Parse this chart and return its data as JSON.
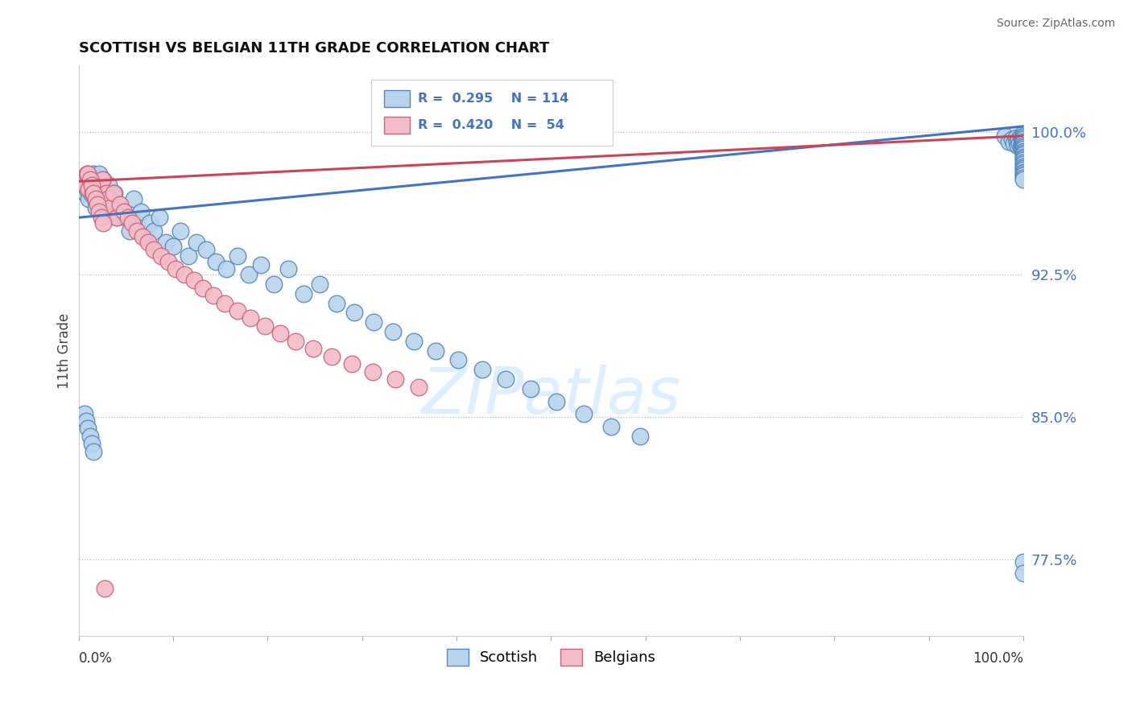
{
  "title": "SCOTTISH VS BELGIAN 11TH GRADE CORRELATION CHART",
  "source": "Source: ZipAtlas.com",
  "ylabel": "11th Grade",
  "yticks": [
    0.775,
    0.85,
    0.925,
    1.0
  ],
  "ytick_labels": [
    "77.5%",
    "85.0%",
    "92.5%",
    "100.0%"
  ],
  "xmin": 0.0,
  "xmax": 1.0,
  "ymin": 0.735,
  "ymax": 1.035,
  "scottish_color": "#b8d4ec",
  "scottish_edge": "#5588bb",
  "belgian_color": "#f2bcc8",
  "belgian_edge": "#cc6677",
  "trendline_scottish": "#4472c4",
  "trendline_belgian": "#cc4455",
  "watermark_color": "#ddeeff",
  "tick_color": "#4472c4",
  "legend_box_color": "#e8e8e8",
  "scottish_trend_start_y": 0.955,
  "scottish_trend_end_y": 1.003,
  "belgian_trend_start_y": 0.974,
  "belgian_trend_end_y": 0.998,
  "scottish_x": [
    0.005,
    0.007,
    0.008,
    0.009,
    0.01,
    0.011,
    0.012,
    0.013,
    0.014,
    0.015,
    0.016,
    0.017,
    0.018,
    0.019,
    0.02,
    0.021,
    0.022,
    0.023,
    0.024,
    0.025,
    0.026,
    0.027,
    0.028,
    0.029,
    0.03,
    0.032,
    0.034,
    0.036,
    0.038,
    0.04,
    0.043,
    0.046,
    0.05,
    0.054,
    0.058,
    0.062,
    0.066,
    0.07,
    0.075,
    0.08,
    0.086,
    0.092,
    0.1,
    0.108,
    0.116,
    0.125,
    0.135,
    0.145,
    0.156,
    0.168,
    0.18,
    0.193,
    0.207,
    0.222,
    0.238,
    0.255,
    0.273,
    0.292,
    0.312,
    0.333,
    0.355,
    0.378,
    0.402,
    0.427,
    0.452,
    0.478,
    0.506,
    0.535,
    0.564,
    0.594,
    0.006,
    0.008,
    0.01,
    0.012,
    0.014,
    0.016,
    0.98,
    0.985,
    0.988,
    0.99,
    0.992,
    0.993,
    0.994,
    0.995,
    0.996,
    0.997,
    0.997,
    0.998,
    0.998,
    0.998,
    0.999,
    0.999,
    0.999,
    1.0,
    1.0,
    1.0,
    1.0,
    1.0,
    1.0,
    1.0,
    1.0,
    1.0,
    1.0,
    1.0,
    1.0,
    1.0,
    1.0,
    1.0,
    1.0,
    1.0,
    1.0,
    1.0,
    1.0,
    1.0,
    1.0,
    1.0,
    1.0,
    1.0,
    1.0,
    1.0
  ],
  "scottish_y": [
    0.972,
    0.968,
    0.975,
    0.97,
    0.978,
    0.965,
    0.972,
    0.968,
    0.975,
    0.97,
    0.978,
    0.965,
    0.96,
    0.972,
    0.968,
    0.965,
    0.978,
    0.972,
    0.96,
    0.968,
    0.975,
    0.962,
    0.97,
    0.965,
    0.958,
    0.972,
    0.965,
    0.96,
    0.968,
    0.955,
    0.962,
    0.958,
    0.955,
    0.948,
    0.965,
    0.952,
    0.958,
    0.945,
    0.952,
    0.948,
    0.955,
    0.942,
    0.94,
    0.948,
    0.935,
    0.942,
    0.938,
    0.932,
    0.928,
    0.935,
    0.925,
    0.93,
    0.92,
    0.928,
    0.915,
    0.92,
    0.91,
    0.905,
    0.9,
    0.895,
    0.89,
    0.885,
    0.88,
    0.875,
    0.87,
    0.865,
    0.858,
    0.852,
    0.845,
    0.84,
    0.852,
    0.848,
    0.844,
    0.84,
    0.836,
    0.832,
    0.998,
    0.995,
    0.996,
    0.994,
    0.997,
    0.995,
    0.993,
    0.996,
    0.994,
    0.998,
    0.992,
    0.996,
    0.994,
    0.992,
    0.998,
    0.996,
    0.994,
    0.999,
    0.998,
    0.997,
    0.996,
    0.995,
    0.994,
    0.993,
    0.992,
    0.991,
    0.99,
    0.989,
    0.988,
    0.987,
    0.986,
    0.985,
    0.984,
    0.983,
    0.982,
    0.981,
    0.98,
    0.979,
    0.978,
    0.977,
    0.976,
    0.975,
    0.774,
    0.768
  ],
  "belgian_x": [
    0.005,
    0.007,
    0.009,
    0.011,
    0.013,
    0.015,
    0.017,
    0.019,
    0.021,
    0.023,
    0.025,
    0.027,
    0.029,
    0.031,
    0.034,
    0.037,
    0.04,
    0.044,
    0.048,
    0.052,
    0.057,
    0.062,
    0.068,
    0.074,
    0.08,
    0.087,
    0.095,
    0.103,
    0.112,
    0.122,
    0.132,
    0.143,
    0.155,
    0.168,
    0.182,
    0.197,
    0.213,
    0.23,
    0.248,
    0.268,
    0.289,
    0.311,
    0.335,
    0.36,
    0.01,
    0.012,
    0.014,
    0.016,
    0.018,
    0.02,
    0.022,
    0.024,
    0.026,
    0.028
  ],
  "belgian_y": [
    0.975,
    0.972,
    0.978,
    0.97,
    0.975,
    0.968,
    0.972,
    0.965,
    0.97,
    0.968,
    0.975,
    0.962,
    0.968,
    0.965,
    0.96,
    0.968,
    0.955,
    0.962,
    0.958,
    0.955,
    0.952,
    0.948,
    0.945,
    0.942,
    0.938,
    0.935,
    0.932,
    0.928,
    0.925,
    0.922,
    0.918,
    0.914,
    0.91,
    0.906,
    0.902,
    0.898,
    0.894,
    0.89,
    0.886,
    0.882,
    0.878,
    0.874,
    0.87,
    0.866,
    0.978,
    0.975,
    0.972,
    0.968,
    0.965,
    0.962,
    0.958,
    0.955,
    0.952,
    0.76
  ]
}
